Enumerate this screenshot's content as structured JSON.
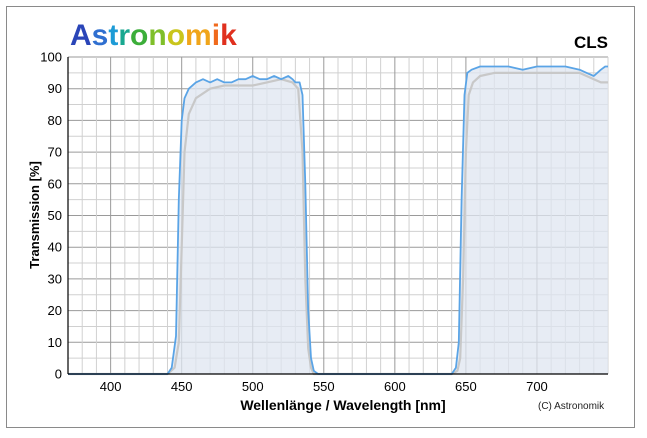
{
  "brand": {
    "text": "Astronomik",
    "letter_colors": [
      "#2a45b8",
      "#2f6fd0",
      "#1d9bd6",
      "#18a890",
      "#3cae3a",
      "#7fbf2a",
      "#c9c51c",
      "#f0a51a",
      "#f06a1c",
      "#e0301e"
    ]
  },
  "chart_data": {
    "type": "line",
    "title": "CLS",
    "xlabel": "Wellenlänge / Wavelength [nm]",
    "ylabel": "Transmission [%]",
    "xlim": [
      370,
      750
    ],
    "ylim": [
      0,
      100
    ],
    "xticks": [
      400,
      450,
      500,
      550,
      600,
      650,
      700
    ],
    "yticks": [
      0,
      10,
      20,
      30,
      40,
      50,
      60,
      70,
      80,
      90,
      100
    ],
    "x_minor_step": 10,
    "y_minor_step": 5,
    "grid": true,
    "copyright": "(C) Astronomik",
    "colors": {
      "main": "#5aa4e6",
      "fill": "#dfe6f0",
      "shadow": "#c8c8c8"
    },
    "series": [
      {
        "style": "shadow",
        "x": [
          370,
          440,
          445,
          448,
          450,
          452,
          455,
          460,
          470,
          480,
          490,
          500,
          510,
          520,
          528,
          532,
          535,
          537,
          539,
          541,
          543,
          546,
          550,
          640,
          644,
          646,
          648,
          650,
          652,
          655,
          660,
          670,
          680,
          690,
          700,
          710,
          720,
          730,
          740,
          745,
          750
        ],
        "y": [
          0,
          0,
          2,
          10,
          40,
          70,
          82,
          87,
          90,
          91,
          91,
          91,
          92,
          93,
          92,
          90,
          70,
          30,
          8,
          2,
          0,
          0,
          0,
          0,
          1,
          5,
          30,
          70,
          88,
          92,
          94,
          95,
          95,
          95,
          95,
          95,
          95,
          95,
          93,
          92,
          92
        ]
      },
      {
        "style": "main",
        "x": [
          370,
          440,
          443,
          446,
          448,
          450,
          452,
          455,
          460,
          465,
          470,
          475,
          480,
          485,
          490,
          495,
          500,
          505,
          510,
          515,
          520,
          525,
          528,
          530,
          533,
          535,
          537,
          539,
          541,
          543,
          546,
          550,
          640,
          643,
          645,
          647,
          649,
          651,
          654,
          660,
          670,
          680,
          690,
          700,
          710,
          720,
          730,
          735,
          740,
          745,
          748,
          750
        ],
        "y": [
          0,
          0,
          2,
          12,
          55,
          80,
          87,
          90,
          92,
          93,
          92,
          93,
          92,
          92,
          93,
          93,
          94,
          93,
          93,
          94,
          93,
          94,
          93,
          92,
          92,
          88,
          60,
          20,
          5,
          1,
          0,
          0,
          0,
          2,
          10,
          55,
          88,
          95,
          96,
          97,
          97,
          97,
          96,
          97,
          97,
          97,
          96,
          95,
          94,
          96,
          97,
          97
        ]
      }
    ]
  }
}
